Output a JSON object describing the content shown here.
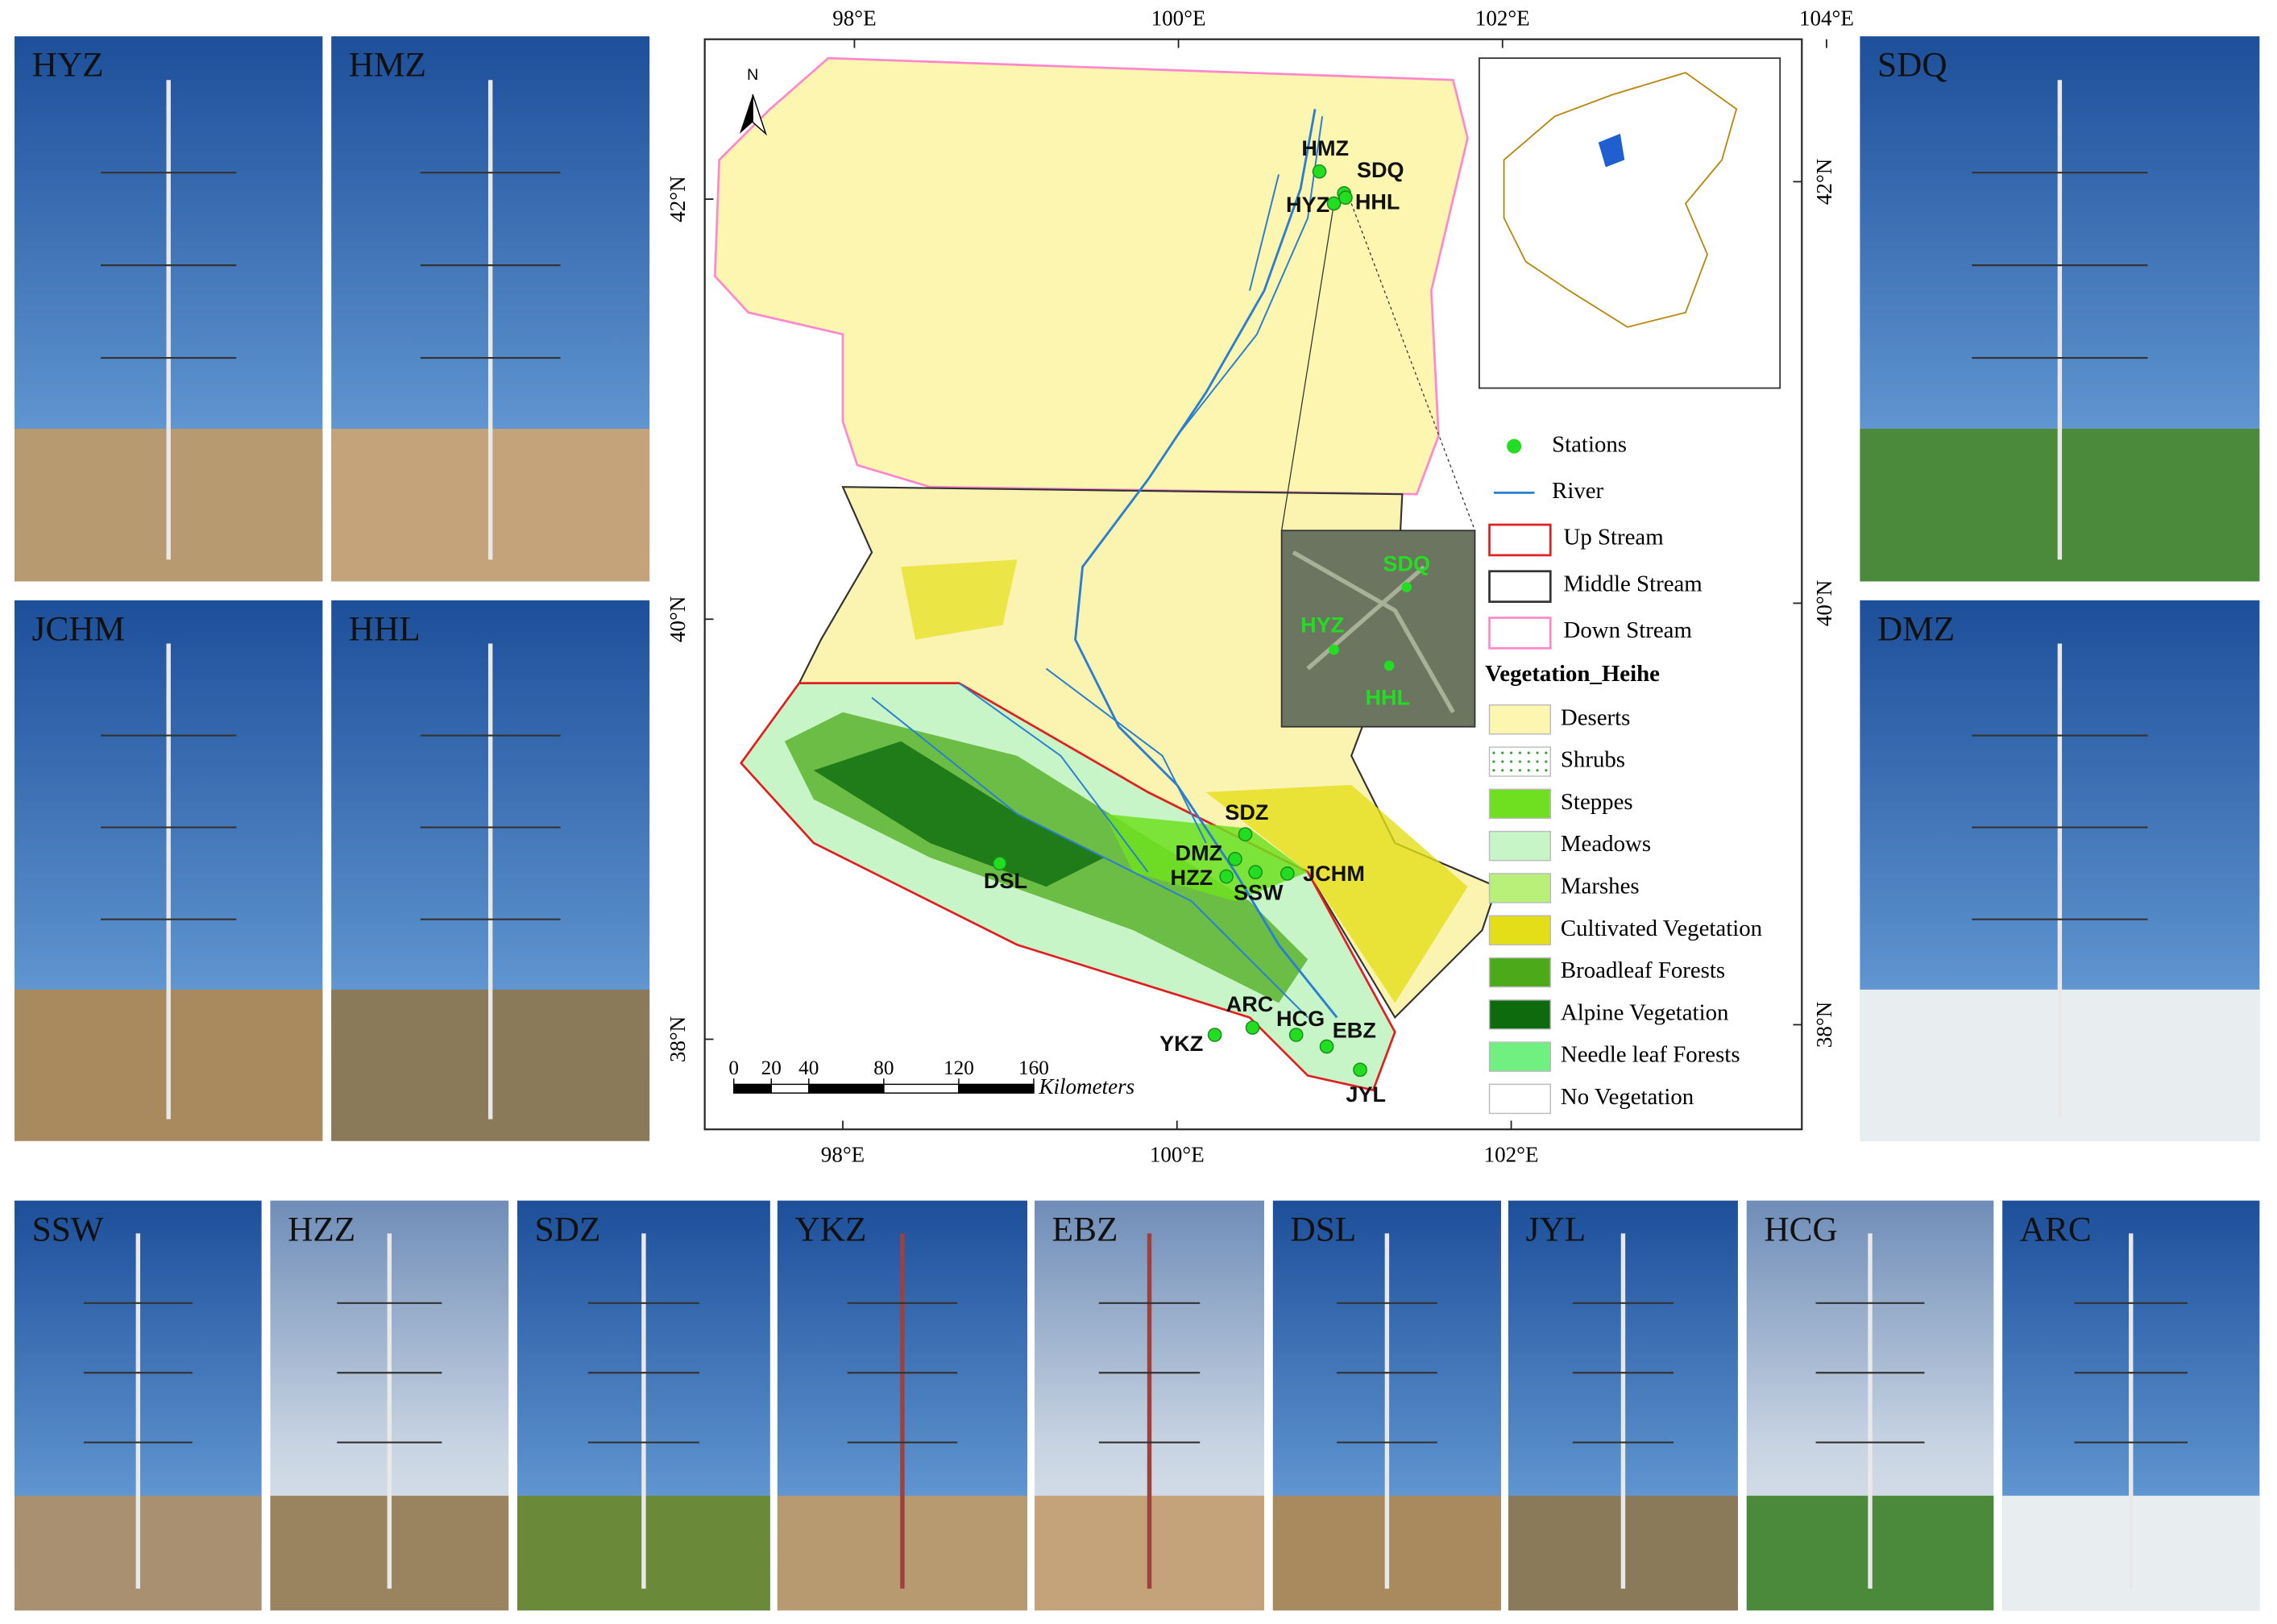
{
  "photos": {
    "left": [
      "HYZ",
      "HMZ",
      "JCHM",
      "HHL"
    ],
    "right": [
      "SDQ",
      "DMZ"
    ],
    "bottom": [
      "SSW",
      "HZZ",
      "SDZ",
      "YKZ",
      "EBZ",
      "DSL",
      "JYL",
      "HCG",
      "ARC"
    ]
  },
  "map": {
    "lon_ticks_top": [
      {
        "value": 98,
        "label": "98°E"
      },
      {
        "value": 100,
        "label": "100°E"
      },
      {
        "value": 102,
        "label": "102°E"
      },
      {
        "value": 104,
        "label": "104°E"
      }
    ],
    "lon_ticks_bottom": [
      {
        "value": 98,
        "label": "98°E"
      },
      {
        "value": 100,
        "label": "100°E"
      },
      {
        "value": 102,
        "label": "102°E"
      }
    ],
    "lat_ticks_left": [
      {
        "value": 42,
        "label": "42°N"
      },
      {
        "value": 40,
        "label": "40°N"
      },
      {
        "value": 38,
        "label": "38°N"
      }
    ],
    "lat_ticks_right": [
      {
        "value": 42,
        "label": "42°N"
      },
      {
        "value": 40,
        "label": "40°N"
      },
      {
        "value": 38,
        "label": "38°N"
      }
    ],
    "north_arrow": "N",
    "stations": [
      "HMZ",
      "SDQ",
      "HYZ",
      "HHL",
      "SDZ",
      "DMZ",
      "HZZ",
      "SSW",
      "JCHM",
      "DSL",
      "ARC",
      "HCG",
      "EBZ",
      "YKZ",
      "JYL"
    ],
    "inset_stations": [
      "SDQ",
      "HYZ",
      "HHL"
    ],
    "scale_bar": {
      "ticks": [
        0,
        20,
        40,
        80,
        120,
        160
      ],
      "unit": "Kilometers"
    },
    "legend": {
      "boundaries": [
        {
          "label": "Stations",
          "color": "#22dd22"
        },
        {
          "label": "River",
          "color": "#2a7fd0"
        },
        {
          "label": "Up Stream",
          "color": "#e02020"
        },
        {
          "label": "Middle Stream",
          "color": "#333333"
        },
        {
          "label": "Down Stream",
          "color": "#ff88cc"
        }
      ],
      "vegetation_title": "Vegetation_Heihe",
      "vegetation": [
        {
          "label": "Deserts",
          "color": "#fdf6b0"
        },
        {
          "label": "Shrubs",
          "color": "#ffffff"
        },
        {
          "label": "Steppes",
          "color": "#6fe020"
        },
        {
          "label": "Meadows",
          "color": "#c8f5c8"
        },
        {
          "label": "Marshes",
          "color": "#b8f07a"
        },
        {
          "label": "Cultivated Vegetation",
          "color": "#e4de18"
        },
        {
          "label": "Broadleaf Forests",
          "color": "#4caa1a"
        },
        {
          "label": "Alpine Vegetation",
          "color": "#0d6b0d"
        },
        {
          "label": "Needle leaf Forests",
          "color": "#70f080"
        },
        {
          "label": "No Vegetation",
          "color": "#ffffff"
        }
      ]
    }
  }
}
